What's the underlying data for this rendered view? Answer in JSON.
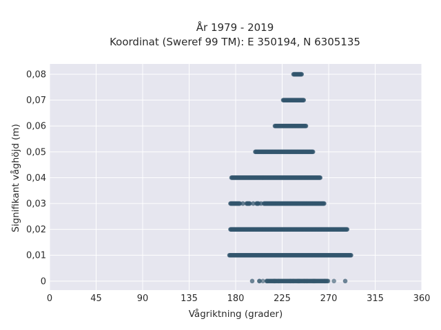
{
  "chart_data": {
    "type": "scatter",
    "title": [
      "År 1979 - 2019",
      "Koordinat (Sweref 99 TM): E 350194, N 6305135"
    ],
    "xlabel": "Vågriktning (grader)",
    "ylabel": "Signifikant våghöjd (m)",
    "xlim": [
      0,
      360
    ],
    "ylim": [
      -0.0035,
      0.084
    ],
    "x_ticks": [
      0,
      45,
      90,
      135,
      180,
      225,
      270,
      315,
      360
    ],
    "x_tick_labels": [
      "0",
      "45",
      "90",
      "135",
      "180",
      "225",
      "270",
      "315",
      "360"
    ],
    "y_ticks": [
      0,
      0.01,
      0.02,
      0.03,
      0.04,
      0.05,
      0.06,
      0.07,
      0.08
    ],
    "y_tick_labels": [
      "0",
      "0,01",
      "0,02",
      "0,03",
      "0,04",
      "0,05",
      "0,06",
      "0,07",
      "0,08"
    ],
    "grid": true,
    "marker_color": "#33566d",
    "background_color": "#e6e6ef",
    "series": [
      {
        "points": [
          {
            "y": 0.08,
            "x_min": 236,
            "x_max": 244,
            "dense": true
          },
          {
            "y": 0.07,
            "x_min": 226,
            "x_max": 246,
            "dense": true
          },
          {
            "y": 0.06,
            "x_min": 218,
            "x_max": 248,
            "dense": true
          },
          {
            "y": 0.05,
            "x_min": 199,
            "x_max": 255,
            "dense": true
          },
          {
            "y": 0.04,
            "x_min": 176,
            "x_max": 262,
            "dense": true
          },
          {
            "y": 0.03,
            "x_min": 175,
            "x_max": 266,
            "dense": true,
            "gaps": [
              [
                184,
                190
              ],
              [
                194,
                200
              ],
              [
                202,
                207
              ]
            ]
          },
          {
            "y": 0.02,
            "x_min": 175,
            "x_max": 288,
            "dense": true
          },
          {
            "y": 0.01,
            "x_min": 174,
            "x_max": 292,
            "dense": true
          },
          {
            "y": 0.0,
            "x_min": 196,
            "x_max": 286,
            "dense": false,
            "core": [
              210,
              270
            ]
          }
        ]
      }
    ]
  }
}
